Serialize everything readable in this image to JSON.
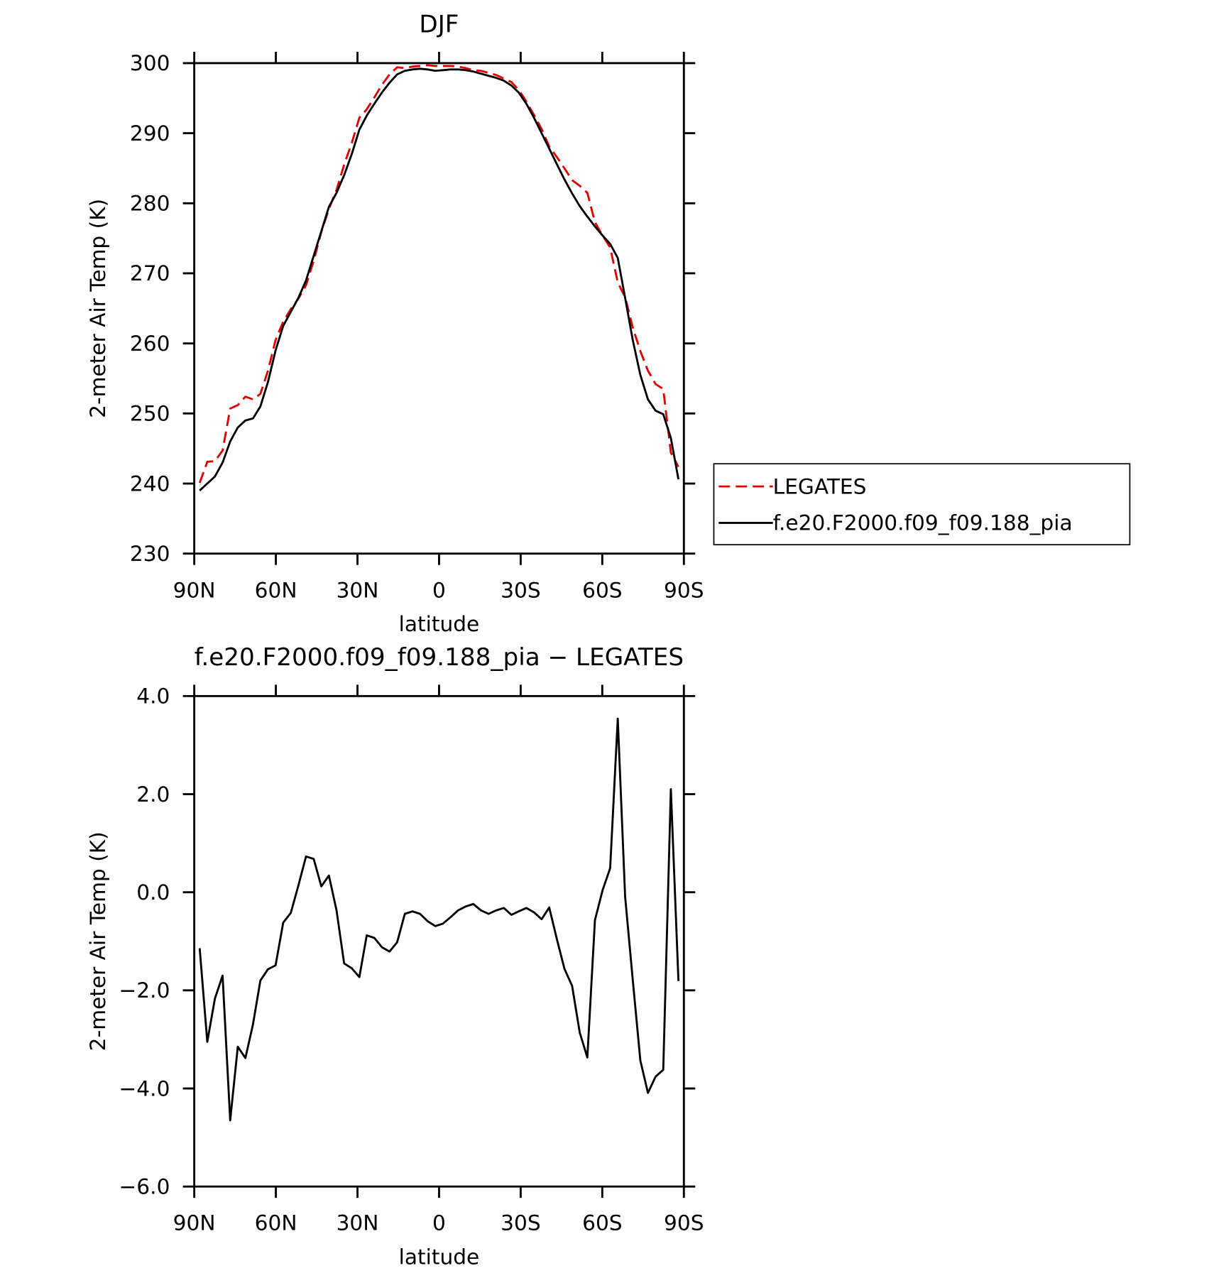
{
  "chart_data": [
    {
      "type": "line",
      "title": "DJF",
      "x_label": "latitude",
      "y_label": "2-meter Air Temp (K)",
      "x": [
        88.0,
        85.2,
        82.4,
        79.6,
        76.8,
        74.0,
        71.2,
        68.4,
        65.7,
        62.9,
        60.1,
        57.3,
        54.5,
        51.7,
        48.9,
        46.1,
        43.3,
        40.5,
        37.7,
        34.9,
        32.1,
        29.3,
        26.6,
        23.8,
        21.0,
        18.2,
        15.4,
        12.6,
        9.8,
        7.0,
        4.2,
        1.4,
        -1.4,
        -4.2,
        -7.0,
        -9.8,
        -12.6,
        -15.4,
        -18.2,
        -21.0,
        -23.8,
        -26.6,
        -29.3,
        -32.1,
        -34.9,
        -37.7,
        -40.5,
        -43.3,
        -46.1,
        -48.9,
        -51.7,
        -54.5,
        -57.3,
        -60.1,
        -62.9,
        -65.7,
        -68.4,
        -71.2,
        -74.0,
        -76.8,
        -79.6,
        -82.4,
        -85.2,
        -88.0
      ],
      "series": [
        {
          "name": "LEGATES",
          "color": "#e00000",
          "dash": true,
          "values": [
            240.1,
            243.1,
            243.2,
            244.7,
            250.7,
            251.2,
            252.4,
            252.0,
            252.8,
            256.1,
            260.5,
            263.1,
            264.9,
            266.4,
            268.3,
            271.8,
            275.9,
            279.2,
            281.9,
            285.5,
            288.6,
            292.2,
            293.4,
            295.1,
            296.9,
            298.4,
            299.4,
            299.3,
            299.5,
            299.6,
            299.7,
            299.6,
            299.6,
            299.6,
            299.5,
            299.3,
            299.0,
            298.9,
            298.6,
            298.3,
            297.8,
            297.3,
            296.2,
            294.5,
            292.6,
            290.6,
            288.1,
            286.6,
            285.0,
            283.3,
            282.5,
            281.5,
            277.3,
            275.4,
            273.7,
            268.7,
            266.6,
            262.3,
            258.9,
            256.1,
            254.2,
            253.5,
            244.4,
            242.4
          ]
        },
        {
          "name": "f.e20.F2000.f09_f09.188_pia",
          "color": "#000000",
          "dash": false,
          "values": [
            239,
            240,
            241,
            243,
            246,
            248,
            249,
            249.3,
            251,
            254.5,
            259,
            262.5,
            264.5,
            266.5,
            269,
            272.5,
            276,
            279.5,
            281.5,
            284,
            287,
            290.5,
            292.5,
            294.2,
            295.8,
            297.2,
            298.4,
            298.9,
            299.1,
            299.2,
            299.1,
            298.9,
            299.0,
            299.1,
            299.1,
            299.0,
            298.8,
            298.5,
            298.2,
            297.9,
            297.5,
            296.8,
            295.8,
            294.2,
            292.2,
            290.0,
            287.8,
            285.6,
            283.4,
            281.4,
            279.6,
            278.1,
            276.7,
            275.4,
            274.2,
            272.2,
            266.5,
            260.5,
            255.5,
            252,
            250.4,
            249.9,
            246.5,
            240.6
          ]
        }
      ],
      "xlim": [
        90,
        -90
      ],
      "xticks": [
        {
          "value": 90,
          "label": "90N"
        },
        {
          "value": 60,
          "label": "60N"
        },
        {
          "value": 30,
          "label": "30N"
        },
        0,
        {
          "value": -30,
          "label": "30S"
        },
        {
          "value": -60,
          "label": "60S"
        },
        {
          "value": -90,
          "label": "90S"
        }
      ],
      "ylim": [
        230,
        300
      ],
      "yticks": [
        230,
        240,
        250,
        260,
        270,
        280,
        290,
        300
      ],
      "legend": "right"
    },
    {
      "type": "line",
      "title": "f.e20.F2000.f09_f09.188_pia − LEGATES",
      "x_label": "latitude",
      "y_label": "2-meter Air Temp (K)",
      "x": [
        88.0,
        85.2,
        82.4,
        79.6,
        76.8,
        74.0,
        71.2,
        68.4,
        65.7,
        62.9,
        60.1,
        57.3,
        54.5,
        51.7,
        48.9,
        46.1,
        43.3,
        40.5,
        37.7,
        34.9,
        32.1,
        29.3,
        26.6,
        23.8,
        21.0,
        18.2,
        15.4,
        12.6,
        9.8,
        7.0,
        4.2,
        1.4,
        -1.4,
        -4.2,
        -7.0,
        -9.8,
        -12.6,
        -15.4,
        -18.2,
        -21.0,
        -23.8,
        -26.6,
        -29.3,
        -32.1,
        -34.9,
        -37.7,
        -40.5,
        -43.3,
        -46.1,
        -48.9,
        -51.7,
        -54.5,
        -57.3,
        -60.1,
        -62.9,
        -65.7,
        -68.4,
        -71.2,
        -74.0,
        -76.8,
        -79.6,
        -82.4,
        -85.2,
        -88.0
      ],
      "series": [
        {
          "color": "#000000",
          "dash": false,
          "values": [
            -1.14,
            -3.05,
            -2.17,
            -1.7,
            -4.65,
            -3.15,
            -3.38,
            -2.69,
            -1.8,
            -1.57,
            -1.49,
            -0.62,
            -0.42,
            0.14,
            0.73,
            0.68,
            0.12,
            0.34,
            -0.37,
            -1.45,
            -1.55,
            -1.73,
            -0.88,
            -0.93,
            -1.12,
            -1.21,
            -1.02,
            -0.44,
            -0.39,
            -0.44,
            -0.59,
            -0.69,
            -0.64,
            -0.51,
            -0.37,
            -0.29,
            -0.24,
            -0.37,
            -0.44,
            -0.37,
            -0.32,
            -0.46,
            -0.39,
            -0.32,
            -0.41,
            -0.55,
            -0.31,
            -0.95,
            -1.56,
            -1.91,
            -2.86,
            -3.37,
            -0.57,
            0.04,
            0.49,
            3.54,
            -0.09,
            -1.78,
            -3.43,
            -4.09,
            -3.76,
            -3.62,
            2.1,
            -1.81
          ]
        }
      ],
      "xlim": [
        90,
        -90
      ],
      "xticks": [
        {
          "value": 90,
          "label": "90N"
        },
        {
          "value": 60,
          "label": "60N"
        },
        {
          "value": 30,
          "label": "30N"
        },
        0,
        {
          "value": -30,
          "label": "30S"
        },
        {
          "value": -60,
          "label": "60S"
        },
        {
          "value": -90,
          "label": "90S"
        }
      ],
      "ylim": [
        -6,
        4
      ],
      "yticks": [
        {
          "value": -6,
          "label": "−6.0"
        },
        {
          "value": -4,
          "label": "−4.0"
        },
        {
          "value": -2,
          "label": "−2.0"
        },
        {
          "value": 0,
          "label": "0.0"
        },
        {
          "value": 2,
          "label": "2.0"
        },
        {
          "value": 4,
          "label": "4.0"
        }
      ]
    }
  ]
}
